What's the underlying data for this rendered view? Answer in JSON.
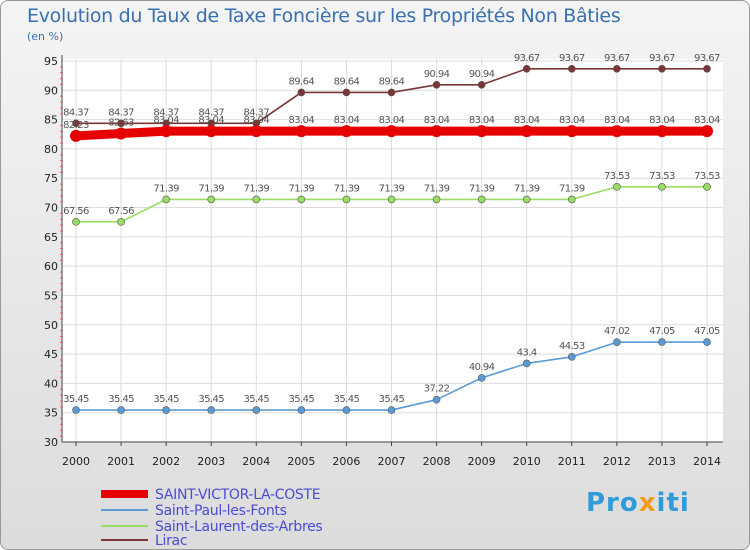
{
  "title": "Evolution du Taux de Taxe Foncière sur les Propriétés Non Bâties",
  "unit_label": "(en %)",
  "brand": "Proxiti",
  "chart_data": {
    "type": "line",
    "x": [
      "2000",
      "2001",
      "2002",
      "2003",
      "2004",
      "2005",
      "2006",
      "2007",
      "2008",
      "2009",
      "2010",
      "2011",
      "2012",
      "2013",
      "2014"
    ],
    "ylim": [
      30,
      95
    ],
    "yticks": [
      30,
      35,
      40,
      45,
      50,
      55,
      60,
      65,
      70,
      75,
      80,
      85,
      90,
      95
    ],
    "grid": true,
    "legend_position": "bottom-left",
    "series": [
      {
        "name": "SAINT-VICTOR-LA-COSTE",
        "color": "#e60000",
        "values": [
          82.23,
          82.63,
          83.04,
          83.04,
          83.04,
          83.04,
          83.04,
          83.04,
          83.04,
          83.04,
          83.04,
          83.04,
          83.04,
          83.04,
          83.04
        ],
        "labels": [
          "82.23",
          "82.63",
          "83.04",
          "83.04",
          "83.04",
          "83.04",
          "83.04",
          "83.04",
          "83.04",
          "83.04",
          "83.04",
          "83.04",
          "83.04",
          "83.04",
          "83.04"
        ]
      },
      {
        "name": "Saint-Paul-les-Fonts",
        "color": "#5b9bd5",
        "values": [
          35.45,
          35.45,
          35.45,
          35.45,
          35.45,
          35.45,
          35.45,
          35.45,
          37.22,
          40.94,
          43.4,
          44.53,
          47.02,
          47.05,
          47.05
        ],
        "labels": [
          "35.45",
          "35.45",
          "35.45",
          "35.45",
          "35.45",
          "35.45",
          "35.45",
          "35.45",
          "37.22",
          "40.94",
          "43.4",
          "44.53",
          "47.02",
          "47.05",
          "47.05"
        ]
      },
      {
        "name": "Saint-Laurent-des-Arbres",
        "color": "#99dd66",
        "values": [
          67.56,
          67.56,
          71.39,
          71.39,
          71.39,
          71.39,
          71.39,
          71.39,
          71.39,
          71.39,
          71.39,
          71.39,
          73.53,
          73.53,
          73.53
        ],
        "labels": [
          "67.56",
          "67.56",
          "71.39",
          "71.39",
          "71.39",
          "71.39",
          "71.39",
          "71.39",
          "71.39",
          "71.39",
          "71.39",
          "71.39",
          "73.53",
          "73.53",
          "73.53"
        ]
      },
      {
        "name": "Lirac",
        "color": "#7a3535",
        "values": [
          84.37,
          84.37,
          84.37,
          84.37,
          84.37,
          89.64,
          89.64,
          89.64,
          90.94,
          90.94,
          93.67,
          93.67,
          93.67,
          93.67,
          93.67
        ],
        "labels": [
          "84.37",
          "84.37",
          "84.37",
          "84.37",
          "84.37",
          "89.64",
          "89.64",
          "89.64",
          "90.94",
          "90.94",
          "93.67",
          "93.67",
          "93.67",
          "93.67",
          "93.67"
        ]
      }
    ]
  }
}
